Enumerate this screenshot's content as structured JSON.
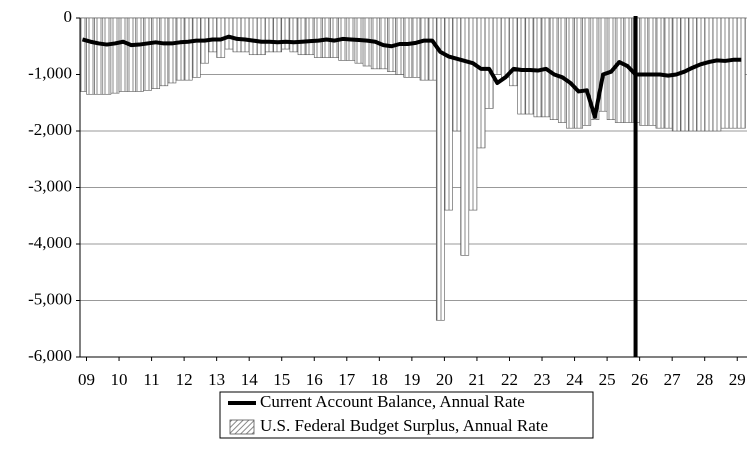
{
  "chart_data": {
    "type": "combo",
    "x": [
      2009.375,
      2009.625,
      2009.875,
      2010.125,
      2010.375,
      2010.625,
      2010.875,
      2011.125,
      2011.375,
      2011.625,
      2011.875,
      2012.125,
      2012.375,
      2012.625,
      2012.875,
      2013.125,
      2013.375,
      2013.625,
      2013.875,
      2014.125,
      2014.375,
      2014.625,
      2014.875,
      2015.125,
      2015.375,
      2015.625,
      2015.875,
      2016.125,
      2016.375,
      2016.625,
      2016.875,
      2017.125,
      2017.375,
      2017.625,
      2017.875,
      2018.125,
      2018.375,
      2018.625,
      2018.875,
      2019.125,
      2019.375,
      2019.625,
      2019.875,
      2020.125,
      2020.375,
      2020.625,
      2020.875,
      2021.125,
      2021.375,
      2021.625,
      2021.875,
      2022.125,
      2022.375,
      2022.625,
      2022.875,
      2023.125,
      2023.375,
      2023.625,
      2023.875,
      2024.125,
      2024.375,
      2024.625,
      2024.875,
      2025.125,
      2025.375,
      2025.625,
      2025.875,
      2026.125,
      2026.375,
      2026.625,
      2026.875,
      2027.125,
      2027.375,
      2027.625,
      2027.875,
      2028.125,
      2028.375,
      2028.625,
      2028.875,
      2029.125,
      2029.375,
      2029.625
    ],
    "series": [
      {
        "name": "Current Account Balance, Annual Rate",
        "type": "line",
        "color": "#000000",
        "values": [
          -380,
          -420,
          -450,
          -470,
          -450,
          -420,
          -480,
          -470,
          -450,
          -430,
          -450,
          -450,
          -430,
          -420,
          -400,
          -400,
          -380,
          -380,
          -330,
          -370,
          -380,
          -400,
          -420,
          -420,
          -430,
          -420,
          -430,
          -420,
          -410,
          -400,
          -380,
          -400,
          -370,
          -380,
          -390,
          -400,
          -420,
          -480,
          -500,
          -460,
          -460,
          -440,
          -400,
          -400,
          -600,
          -680,
          -720,
          -760,
          -800,
          -900,
          -900,
          -1150,
          -1050,
          -900,
          -920,
          -920,
          -930,
          -900,
          -1000,
          -1050,
          -1150,
          -1300,
          -1280,
          -1750,
          -1000,
          -950,
          -780,
          -850,
          -1000,
          -1000,
          -1000,
          -1000,
          -1020,
          -1000,
          -950,
          -880,
          -820,
          -780,
          -750,
          -760,
          -740,
          -740
        ]
      },
      {
        "name": "U.S. Federal Budget Surplus, Annual Rate",
        "type": "bar",
        "color": "#555555",
        "values": [
          -1300,
          -1350,
          -1350,
          -1350,
          -1330,
          -1300,
          -1300,
          -1300,
          -1280,
          -1250,
          -1200,
          -1150,
          -1100,
          -1100,
          -1050,
          -800,
          -600,
          -700,
          -550,
          -600,
          -600,
          -650,
          -650,
          -600,
          -600,
          -550,
          -600,
          -650,
          -650,
          -700,
          -700,
          -700,
          -750,
          -750,
          -800,
          -850,
          -900,
          -900,
          -950,
          -1000,
          -1050,
          -1050,
          -1100,
          -1100,
          -5350,
          -3400,
          -2000,
          -4200,
          -3400,
          -2300,
          -1600,
          -1000,
          -1050,
          -1200,
          -1700,
          -1700,
          -1750,
          -1750,
          -1800,
          -1850,
          -1950,
          -1950,
          -1900,
          -1800,
          -1650,
          -1800,
          -1850,
          -1850,
          -1850,
          -1900,
          -1900,
          -1950,
          -1950,
          -2000,
          -2000,
          -2000,
          -2000,
          -2000,
          -2000,
          -1950,
          -1950,
          -1950
        ]
      }
    ],
    "vline": 2026.375,
    "xlim": [
      2009.3,
      2029.8
    ],
    "xticks": [
      {
        "value": 2009.5,
        "label": "09"
      },
      {
        "value": 2010.5,
        "label": "10"
      },
      {
        "value": 2011.5,
        "label": "11"
      },
      {
        "value": 2012.5,
        "label": "12"
      },
      {
        "value": 2013.5,
        "label": "13"
      },
      {
        "value": 2014.5,
        "label": "14"
      },
      {
        "value": 2015.5,
        "label": "15"
      },
      {
        "value": 2016.5,
        "label": "16"
      },
      {
        "value": 2017.5,
        "label": "17"
      },
      {
        "value": 2018.5,
        "label": "18"
      },
      {
        "value": 2019.5,
        "label": "19"
      },
      {
        "value": 2020.5,
        "label": "20"
      },
      {
        "value": 2021.5,
        "label": "21"
      },
      {
        "value": 2022.5,
        "label": "22"
      },
      {
        "value": 2023.5,
        "label": "23"
      },
      {
        "value": 2024.5,
        "label": "24"
      },
      {
        "value": 2025.5,
        "label": "25"
      },
      {
        "value": 2026.5,
        "label": "26"
      },
      {
        "value": 2027.5,
        "label": "27"
      },
      {
        "value": 2028.5,
        "label": "28"
      },
      {
        "value": 2029.5,
        "label": "29"
      }
    ],
    "ylim": [
      -6000,
      0
    ],
    "yticks": [
      {
        "value": -6000,
        "label": "-6,000"
      },
      {
        "value": -5000,
        "label": "-5,000"
      },
      {
        "value": -4000,
        "label": "-4,000"
      },
      {
        "value": -3000,
        "label": "-3,000"
      },
      {
        "value": -2000,
        "label": "-2,000"
      },
      {
        "value": -1000,
        "label": "-1,000"
      },
      0
    ],
    "grid": true
  }
}
